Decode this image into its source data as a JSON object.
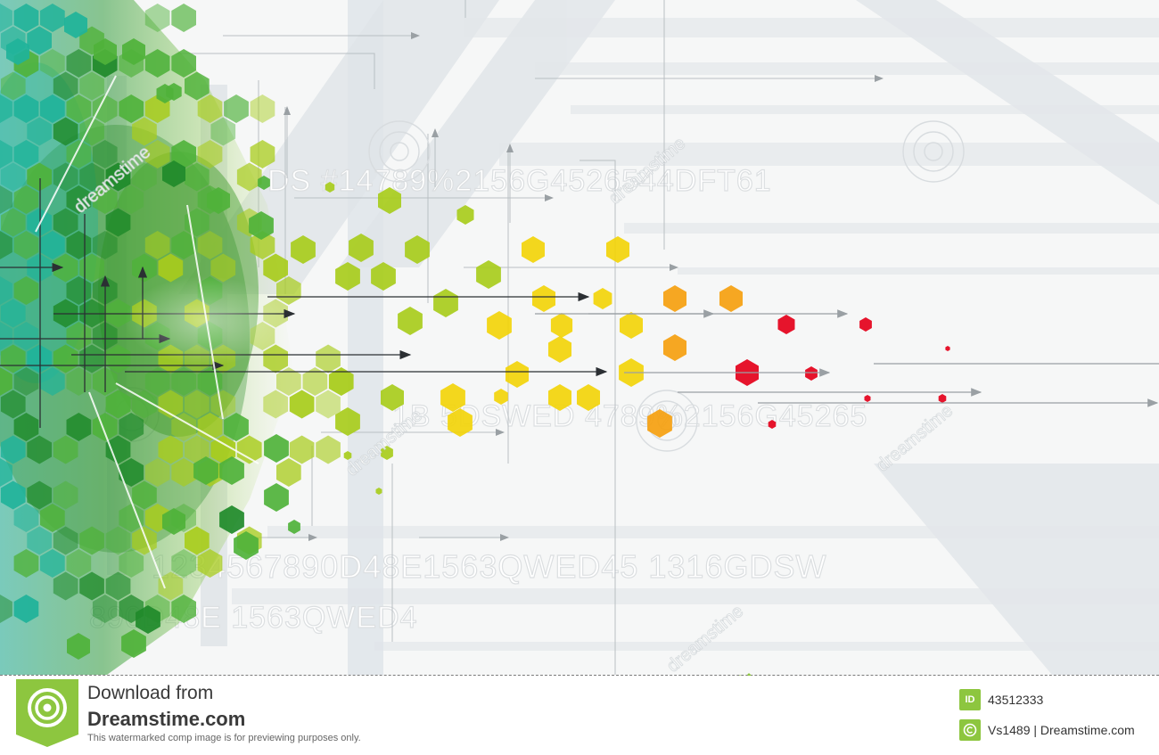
{
  "watermark": {
    "text": "dreamstime",
    "ghost_lines": [
      "DS #14789%2156G4526544DFT61",
      "1B 5DSWED 4789%2156G45265",
      "1234567890D48E1563QWED45 1316GDSW",
      "890D48E 1563QWED4"
    ]
  },
  "footer": {
    "download_from": "Download from",
    "site": "Dreamstime.com",
    "disclaimer": "This watermarked comp image is for previewing purposes only.",
    "id_badge": "ID",
    "image_id": "43512333",
    "author": "Vs1489 | Dreamstime.com"
  },
  "colors": {
    "green_dark": "#1f8a2a",
    "green": "#4fb23a",
    "lime": "#a8cc1c",
    "yellow": "#f2d40a",
    "orange": "#f5a00f",
    "red": "#e4001a",
    "teal": "#1fb39a",
    "brand_green": "#8dc63f"
  },
  "icons": [
    "dreamstime-logo-icon",
    "scissors-icon",
    "id-badge-icon",
    "copyright-badge-icon"
  ]
}
